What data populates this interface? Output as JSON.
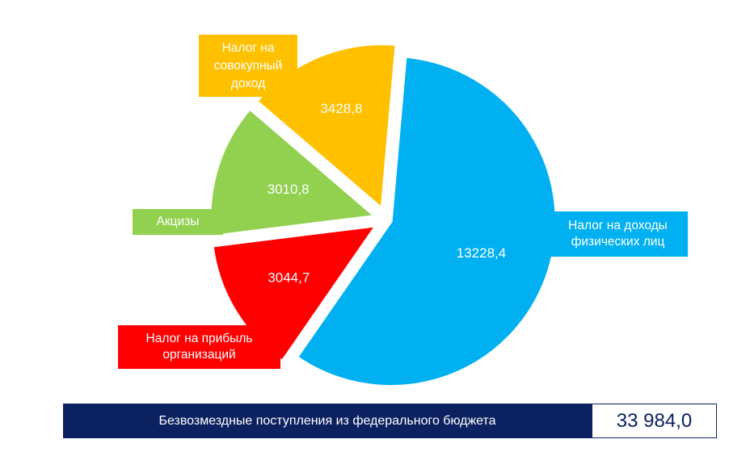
{
  "chart_data": {
    "type": "pie",
    "slices": [
      {
        "name": "Налог на доходы физических лиц",
        "value": 13228.4,
        "value_label": "13228,4",
        "color": "#00b0f0"
      },
      {
        "name": "Налог на прибыль организаций",
        "value": 3044.7,
        "value_label": "3044,7",
        "color": "#ff0000"
      },
      {
        "name": "Акцизы",
        "value": 3010.8,
        "value_label": "3010,8",
        "color": "#92d050"
      },
      {
        "name": "Налог на совокупный доход",
        "value": 3428.8,
        "value_label": "3428,8",
        "color": "#ffc000"
      }
    ]
  },
  "legend": {
    "ndfl": "Налог на доходы физических лиц",
    "profit": "Налог на прибыль организаций",
    "excise": "Акцизы",
    "aggregate": "Налог на совокупный доход"
  },
  "footer": {
    "label": "Безвозмездные поступления из федерального бюджета",
    "value": "33 984,0"
  }
}
